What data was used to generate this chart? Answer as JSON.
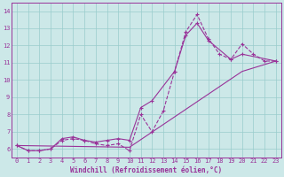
{
  "xlabel": "Windchill (Refroidissement éolien,°C)",
  "background_color": "#cce8e8",
  "grid_color": "#99cccc",
  "line_color": "#993399",
  "xlim": [
    -0.5,
    23.5
  ],
  "ylim": [
    5.5,
    14.5
  ],
  "yticks": [
    6,
    7,
    8,
    9,
    10,
    11,
    12,
    13,
    14
  ],
  "xticks": [
    0,
    1,
    2,
    3,
    4,
    5,
    6,
    7,
    8,
    9,
    10,
    11,
    12,
    13,
    14,
    15,
    16,
    17,
    18,
    19,
    20,
    21,
    22,
    23
  ],
  "line1_x": [
    0,
    1,
    2,
    3,
    4,
    5,
    6,
    7,
    8,
    9,
    10,
    11,
    12,
    13,
    14,
    15,
    16,
    17,
    18,
    19,
    20,
    21,
    22,
    23
  ],
  "line1_y": [
    6.2,
    5.9,
    5.9,
    6.0,
    6.5,
    6.6,
    6.5,
    6.3,
    6.2,
    6.3,
    5.9,
    8.0,
    7.0,
    8.2,
    10.5,
    12.8,
    13.8,
    12.4,
    11.5,
    11.2,
    12.1,
    11.5,
    11.1,
    11.1
  ],
  "line2_x": [
    0,
    1,
    2,
    3,
    4,
    5,
    6,
    7,
    8,
    9,
    10,
    11,
    12,
    14,
    15,
    16,
    17,
    19,
    20,
    23
  ],
  "line2_y": [
    6.2,
    5.9,
    5.9,
    6.0,
    6.6,
    6.7,
    6.5,
    6.4,
    6.5,
    6.6,
    6.5,
    8.4,
    8.8,
    10.5,
    12.6,
    13.3,
    12.3,
    11.2,
    11.5,
    11.1
  ],
  "line3_x": [
    0,
    10,
    20,
    23
  ],
  "line3_y": [
    6.2,
    6.1,
    10.5,
    11.1
  ]
}
